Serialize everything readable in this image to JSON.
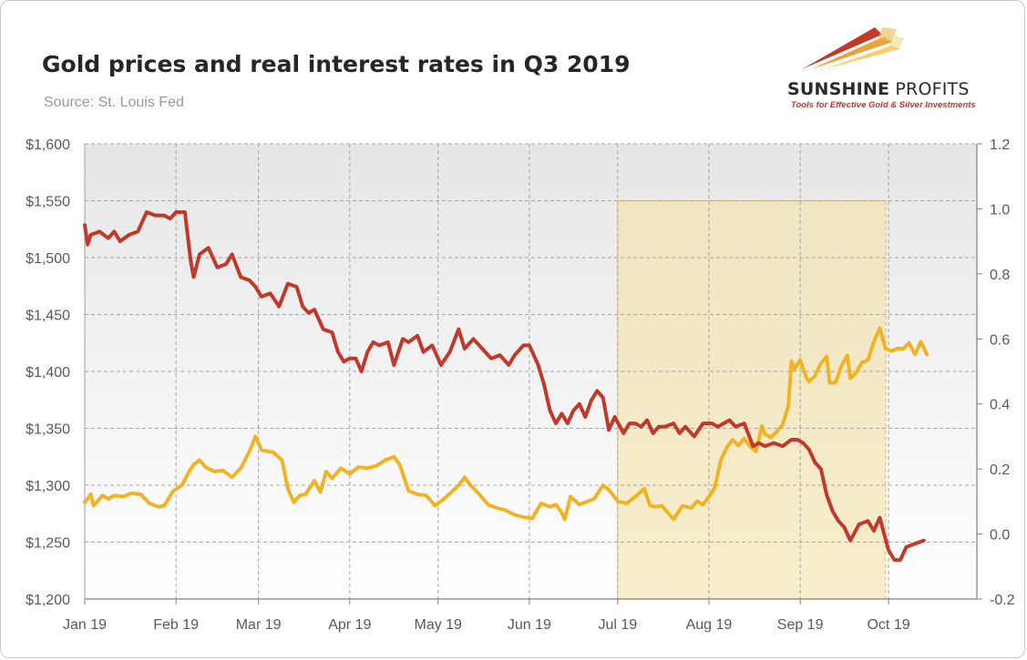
{
  "header": {
    "title": "Gold prices and real interest rates in Q3 2019",
    "source": "Source: St. Louis Fed"
  },
  "logo": {
    "name_bold": "SUNSHINE",
    "name_thin": " PROFITS",
    "tagline": "Tools for Effective Gold & Silver Investments"
  },
  "colors": {
    "gold_series": "#F0B323",
    "rate_series": "#C0392B",
    "highlight": "#F5E2A8",
    "grid": "#a6a6a6"
  },
  "chart_data": {
    "type": "line",
    "title": "Gold prices and real interest rates in Q3 2019",
    "xlabel": "",
    "ylabel_left": "",
    "ylabel_right": "",
    "x_ticks": [
      "Jan 19",
      "Feb 19",
      "Mar 19",
      "Apr 19",
      "May 19",
      "Jun 19",
      "Jul 19",
      "Aug 19",
      "Sep 19",
      "Oct 19"
    ],
    "y_left_ticks": [
      "$1,200",
      "$1,250",
      "$1,300",
      "$1,350",
      "$1,400",
      "$1,450",
      "$1,500",
      "$1,550",
      "$1,600"
    ],
    "y_right_ticks": [
      "-0.2",
      "0.0",
      "0.2",
      "0.4",
      "0.6",
      "0.8",
      "1.0",
      "1.2"
    ],
    "y_left_range": [
      1200,
      1600
    ],
    "y_right_range": [
      -0.2,
      1.2
    ],
    "x_range": [
      "2019-01-01",
      "2019-10-31"
    ],
    "grid": true,
    "legend": "none",
    "highlight_range": [
      "2019-07-01",
      "2019-09-30"
    ],
    "series": [
      {
        "axis": "left",
        "color": "#F0B323",
        "points": [
          [
            "2019-01-01",
            1285
          ],
          [
            "2019-01-02",
            1288
          ],
          [
            "2019-01-03",
            1292
          ],
          [
            "2019-01-04",
            1282
          ],
          [
            "2019-01-07",
            1291
          ],
          [
            "2019-01-09",
            1288
          ],
          [
            "2019-01-11",
            1291
          ],
          [
            "2019-01-14",
            1290
          ],
          [
            "2019-01-17",
            1293
          ],
          [
            "2019-01-20",
            1292
          ],
          [
            "2019-01-23",
            1284
          ],
          [
            "2019-01-26",
            1281
          ],
          [
            "2019-01-28",
            1282
          ],
          [
            "2019-01-31",
            1295
          ],
          [
            "2019-02-03",
            1300
          ],
          [
            "2019-02-05",
            1310
          ],
          [
            "2019-02-07",
            1318
          ],
          [
            "2019-02-09",
            1322
          ],
          [
            "2019-02-11",
            1316
          ],
          [
            "2019-02-14",
            1312
          ],
          [
            "2019-02-17",
            1313
          ],
          [
            "2019-02-20",
            1307
          ],
          [
            "2019-02-23",
            1315
          ],
          [
            "2019-02-26",
            1330
          ],
          [
            "2019-02-28",
            1343
          ],
          [
            "2019-03-02",
            1331
          ],
          [
            "2019-03-06",
            1329
          ],
          [
            "2019-03-09",
            1322
          ],
          [
            "2019-03-11",
            1297
          ],
          [
            "2019-03-13",
            1285
          ],
          [
            "2019-03-15",
            1291
          ],
          [
            "2019-03-17",
            1292
          ],
          [
            "2019-03-20",
            1304
          ],
          [
            "2019-03-22",
            1294
          ],
          [
            "2019-03-24",
            1312
          ],
          [
            "2019-03-26",
            1306
          ],
          [
            "2019-03-29",
            1315
          ],
          [
            "2019-04-01",
            1310
          ],
          [
            "2019-04-04",
            1316
          ],
          [
            "2019-04-07",
            1315
          ],
          [
            "2019-04-10",
            1317
          ],
          [
            "2019-04-13",
            1322
          ],
          [
            "2019-04-16",
            1325
          ],
          [
            "2019-04-18",
            1318
          ],
          [
            "2019-04-21",
            1295
          ],
          [
            "2019-04-24",
            1292
          ],
          [
            "2019-04-27",
            1291
          ],
          [
            "2019-04-30",
            1282
          ],
          [
            "2019-05-03",
            1288
          ],
          [
            "2019-05-06",
            1295
          ],
          [
            "2019-05-08",
            1300
          ],
          [
            "2019-05-10",
            1307
          ],
          [
            "2019-05-12",
            1300
          ],
          [
            "2019-05-15",
            1292
          ],
          [
            "2019-05-18",
            1283
          ],
          [
            "2019-05-21",
            1280
          ],
          [
            "2019-05-24",
            1278
          ],
          [
            "2019-05-27",
            1274
          ],
          [
            "2019-05-30",
            1272
          ],
          [
            "2019-06-02",
            1271
          ],
          [
            "2019-06-05",
            1284
          ],
          [
            "2019-06-08",
            1281
          ],
          [
            "2019-06-10",
            1283
          ],
          [
            "2019-06-12",
            1276
          ],
          [
            "2019-06-13",
            1270
          ],
          [
            "2019-06-15",
            1290
          ],
          [
            "2019-06-18",
            1283
          ],
          [
            "2019-06-20",
            1285
          ],
          [
            "2019-06-23",
            1288
          ],
          [
            "2019-06-26",
            1300
          ],
          [
            "2019-06-28",
            1296
          ],
          [
            "2019-07-01",
            1286
          ],
          [
            "2019-07-04",
            1284
          ],
          [
            "2019-07-07",
            1290
          ],
          [
            "2019-07-10",
            1297
          ],
          [
            "2019-07-12",
            1282
          ],
          [
            "2019-07-14",
            1281
          ],
          [
            "2019-07-16",
            1282
          ],
          [
            "2019-07-18",
            1276
          ],
          [
            "2019-07-20",
            1270
          ],
          [
            "2019-07-23",
            1282
          ],
          [
            "2019-07-26",
            1280
          ],
          [
            "2019-07-28",
            1286
          ],
          [
            "2019-07-30",
            1283
          ],
          [
            "2019-08-01",
            1290
          ],
          [
            "2019-08-03",
            1298
          ],
          [
            "2019-08-05",
            1322
          ],
          [
            "2019-08-07",
            1333
          ],
          [
            "2019-08-09",
            1340
          ],
          [
            "2019-08-11",
            1335
          ],
          [
            "2019-08-13",
            1341
          ],
          [
            "2019-08-15",
            1334
          ],
          [
            "2019-08-17",
            1330
          ],
          [
            "2019-08-19",
            1352
          ],
          [
            "2019-08-20",
            1345
          ],
          [
            "2019-08-22",
            1342
          ],
          [
            "2019-08-24",
            1347
          ],
          [
            "2019-08-26",
            1353
          ],
          [
            "2019-08-28",
            1370
          ],
          [
            "2019-08-29",
            1409
          ],
          [
            "2019-08-30",
            1402
          ],
          [
            "2019-09-01",
            1410
          ],
          [
            "2019-09-03",
            1395
          ],
          [
            "2019-09-04",
            1391
          ],
          [
            "2019-09-06",
            1396
          ],
          [
            "2019-09-08",
            1407
          ],
          [
            "2019-09-10",
            1413
          ],
          [
            "2019-09-11",
            1390
          ],
          [
            "2019-09-13",
            1390
          ],
          [
            "2019-09-15",
            1405
          ],
          [
            "2019-09-17",
            1414
          ],
          [
            "2019-09-18",
            1394
          ],
          [
            "2019-09-20",
            1399
          ],
          [
            "2019-09-22",
            1408
          ],
          [
            "2019-09-24",
            1410
          ],
          [
            "2019-09-26",
            1426
          ],
          [
            "2019-09-28",
            1438
          ],
          [
            "2019-09-30",
            1420
          ],
          [
            "2019-10-02",
            1418
          ],
          [
            "2019-10-04",
            1420
          ],
          [
            "2019-10-06",
            1420
          ],
          [
            "2019-10-08",
            1425
          ],
          [
            "2019-10-10",
            1415
          ],
          [
            "2019-10-12",
            1426
          ],
          [
            "2019-10-14",
            1415
          ]
        ]
      },
      {
        "axis": "right",
        "color": "#C0392B",
        "points": [
          [
            "2019-01-01",
            0.95
          ],
          [
            "2019-01-02",
            0.89
          ],
          [
            "2019-01-03",
            0.92
          ],
          [
            "2019-01-06",
            0.93
          ],
          [
            "2019-01-09",
            0.91
          ],
          [
            "2019-01-11",
            0.93
          ],
          [
            "2019-01-13",
            0.9
          ],
          [
            "2019-01-16",
            0.92
          ],
          [
            "2019-01-19",
            0.93
          ],
          [
            "2019-01-22",
            0.99
          ],
          [
            "2019-01-25",
            0.98
          ],
          [
            "2019-01-28",
            0.98
          ],
          [
            "2019-01-30",
            0.97
          ],
          [
            "2019-02-01",
            0.99
          ],
          [
            "2019-02-04",
            0.99
          ],
          [
            "2019-02-06",
            0.84
          ],
          [
            "2019-02-07",
            0.79
          ],
          [
            "2019-02-09",
            0.86
          ],
          [
            "2019-02-12",
            0.88
          ],
          [
            "2019-02-15",
            0.82
          ],
          [
            "2019-02-18",
            0.83
          ],
          [
            "2019-02-20",
            0.86
          ],
          [
            "2019-02-23",
            0.79
          ],
          [
            "2019-02-26",
            0.78
          ],
          [
            "2019-02-28",
            0.76
          ],
          [
            "2019-03-02",
            0.73
          ],
          [
            "2019-03-05",
            0.74
          ],
          [
            "2019-03-08",
            0.7
          ],
          [
            "2019-03-11",
            0.77
          ],
          [
            "2019-03-14",
            0.76
          ],
          [
            "2019-03-16",
            0.7
          ],
          [
            "2019-03-18",
            0.68
          ],
          [
            "2019-03-20",
            0.69
          ],
          [
            "2019-03-23",
            0.63
          ],
          [
            "2019-03-26",
            0.62
          ],
          [
            "2019-03-28",
            0.56
          ],
          [
            "2019-03-30",
            0.53
          ],
          [
            "2019-04-01",
            0.54
          ],
          [
            "2019-04-03",
            0.54
          ],
          [
            "2019-04-05",
            0.5
          ],
          [
            "2019-04-07",
            0.56
          ],
          [
            "2019-04-09",
            0.59
          ],
          [
            "2019-04-11",
            0.58
          ],
          [
            "2019-04-14",
            0.59
          ],
          [
            "2019-04-16",
            0.52
          ],
          [
            "2019-04-19",
            0.6
          ],
          [
            "2019-04-21",
            0.59
          ],
          [
            "2019-04-24",
            0.61
          ],
          [
            "2019-04-26",
            0.56
          ],
          [
            "2019-04-29",
            0.58
          ],
          [
            "2019-05-02",
            0.52
          ],
          [
            "2019-05-05",
            0.56
          ],
          [
            "2019-05-08",
            0.63
          ],
          [
            "2019-05-10",
            0.57
          ],
          [
            "2019-05-13",
            0.6
          ],
          [
            "2019-05-16",
            0.57
          ],
          [
            "2019-05-19",
            0.54
          ],
          [
            "2019-05-22",
            0.55
          ],
          [
            "2019-05-25",
            0.52
          ],
          [
            "2019-05-27",
            0.55
          ],
          [
            "2019-05-30",
            0.58
          ],
          [
            "2019-06-01",
            0.58
          ],
          [
            "2019-06-04",
            0.52
          ],
          [
            "2019-06-06",
            0.46
          ],
          [
            "2019-06-08",
            0.38
          ],
          [
            "2019-06-10",
            0.34
          ],
          [
            "2019-06-12",
            0.37
          ],
          [
            "2019-06-14",
            0.34
          ],
          [
            "2019-06-16",
            0.38
          ],
          [
            "2019-06-18",
            0.4
          ],
          [
            "2019-06-20",
            0.36
          ],
          [
            "2019-06-22",
            0.41
          ],
          [
            "2019-06-24",
            0.44
          ],
          [
            "2019-06-26",
            0.42
          ],
          [
            "2019-06-28",
            0.32
          ],
          [
            "2019-06-30",
            0.36
          ],
          [
            "2019-07-03",
            0.31
          ],
          [
            "2019-07-05",
            0.34
          ],
          [
            "2019-07-07",
            0.34
          ],
          [
            "2019-07-09",
            0.33
          ],
          [
            "2019-07-11",
            0.35
          ],
          [
            "2019-07-13",
            0.31
          ],
          [
            "2019-07-15",
            0.33
          ],
          [
            "2019-07-17",
            0.33
          ],
          [
            "2019-07-20",
            0.34
          ],
          [
            "2019-07-22",
            0.31
          ],
          [
            "2019-07-24",
            0.33
          ],
          [
            "2019-07-27",
            0.3
          ],
          [
            "2019-07-30",
            0.34
          ],
          [
            "2019-08-02",
            0.34
          ],
          [
            "2019-08-04",
            0.33
          ],
          [
            "2019-08-06",
            0.34
          ],
          [
            "2019-08-08",
            0.35
          ],
          [
            "2019-08-10",
            0.33
          ],
          [
            "2019-08-13",
            0.34
          ],
          [
            "2019-08-16",
            0.27
          ],
          [
            "2019-08-18",
            0.28
          ],
          [
            "2019-08-20",
            0.27
          ],
          [
            "2019-08-23",
            0.28
          ],
          [
            "2019-08-26",
            0.27
          ],
          [
            "2019-08-29",
            0.29
          ],
          [
            "2019-08-31",
            0.29
          ],
          [
            "2019-09-02",
            0.28
          ],
          [
            "2019-09-04",
            0.26
          ],
          [
            "2019-09-06",
            0.22
          ],
          [
            "2019-09-08",
            0.2
          ],
          [
            "2019-09-10",
            0.12
          ],
          [
            "2019-09-12",
            0.07
          ],
          [
            "2019-09-14",
            0.04
          ],
          [
            "2019-09-16",
            0.02
          ],
          [
            "2019-09-18",
            -0.02
          ],
          [
            "2019-09-21",
            0.03
          ],
          [
            "2019-09-24",
            0.04
          ],
          [
            "2019-09-26",
            0.01
          ],
          [
            "2019-09-28",
            0.05
          ],
          [
            "2019-10-01",
            -0.05
          ],
          [
            "2019-10-03",
            -0.08
          ],
          [
            "2019-10-05",
            -0.08
          ],
          [
            "2019-10-07",
            -0.04
          ],
          [
            "2019-10-10",
            -0.03
          ],
          [
            "2019-10-13",
            -0.02
          ]
        ]
      }
    ]
  }
}
